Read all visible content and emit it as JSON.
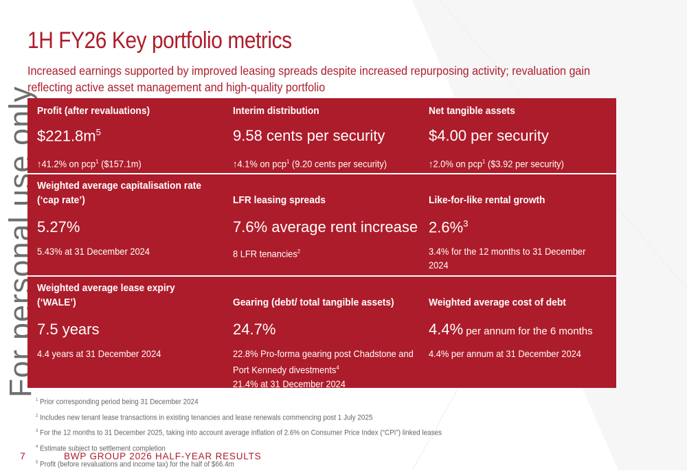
{
  "title": "1H FY26 Key portfolio metrics",
  "subtitle": "Increased earnings supported by improved leasing spreads despite increased repurposing activity; revaluation gain reflecting active asset management and high-quality portfolio",
  "colors": {
    "accent": "#ad1c2a",
    "text_on_accent": "#ffffff"
  },
  "metrics": [
    {
      "label": "Profit (after revaluations)",
      "value": "$221.8m",
      "value_sup": "5",
      "note": "↑41.2% on pcp",
      "note_sup": "1",
      "note_tail": " ($157.1m)"
    },
    {
      "label": "Interim distribution",
      "value": "9.58 cents per security",
      "note": "↑4.1% on pcp",
      "note_sup": "1",
      "note_tail": " (9.20 cents per security)"
    },
    {
      "label": "Net tangible assets",
      "value": "$4.00 per security",
      "note": "↑2.0% on pcp",
      "note_sup": "1",
      "note_tail": " ($3.92 per security)"
    },
    {
      "label": "Weighted average capitalisation rate",
      "label2": "(‘cap rate’)",
      "value": "5.27%",
      "note": "5.43% at 31 December 2024"
    },
    {
      "label": "LFR leasing spreads",
      "value": "7.6% average rent increase",
      "note": "8 LFR tenancies",
      "note_sup": "2"
    },
    {
      "label": "Like-for-like rental growth",
      "value": "2.6%",
      "value_sup": "3",
      "note": "3.4% for the 12 months to 31 December 2024"
    },
    {
      "label": "Weighted average lease expiry",
      "label2": "(‘WALE’)",
      "value": "7.5 years",
      "note": "4.4  years at 31 December 2024"
    },
    {
      "label": "Gearing (debt/ total tangible assets)",
      "value": "24.7%",
      "note": "22.8% Pro-forma gearing post Chadstone and Port Kennedy divestments",
      "note_sup": "4",
      "note2": "21.4% at 31 December 2024"
    },
    {
      "label": "Weighted average cost of debt",
      "value": "4.4%",
      "value_small": " per annum for the 6 months",
      "note": "4.4% per annum at 31 December 2024"
    }
  ],
  "footnotes": [
    {
      "n": "1",
      "text": " Prior corresponding period being 31 December 2024"
    },
    {
      "n": "2",
      "text": " Includes new tenant lease transactions in existing tenancies and lease renewals commencing post 1 July 2025"
    },
    {
      "n": "3",
      "text": " For the 12 months to 31 December 2025, taking into account average inflation of 2.6% on Consumer Price Index (“CPI”) linked leases"
    },
    {
      "n": "4",
      "text": " Estimate subject to settlement completion"
    },
    {
      "n": "5",
      "text": " Profit (before revaluations and income tax) for the half of $66.4m"
    }
  ],
  "footer": {
    "page": "7",
    "brand": "BWP GROUP 2026 HALF-YEAR RESULTS"
  },
  "watermark": "For personal use only"
}
